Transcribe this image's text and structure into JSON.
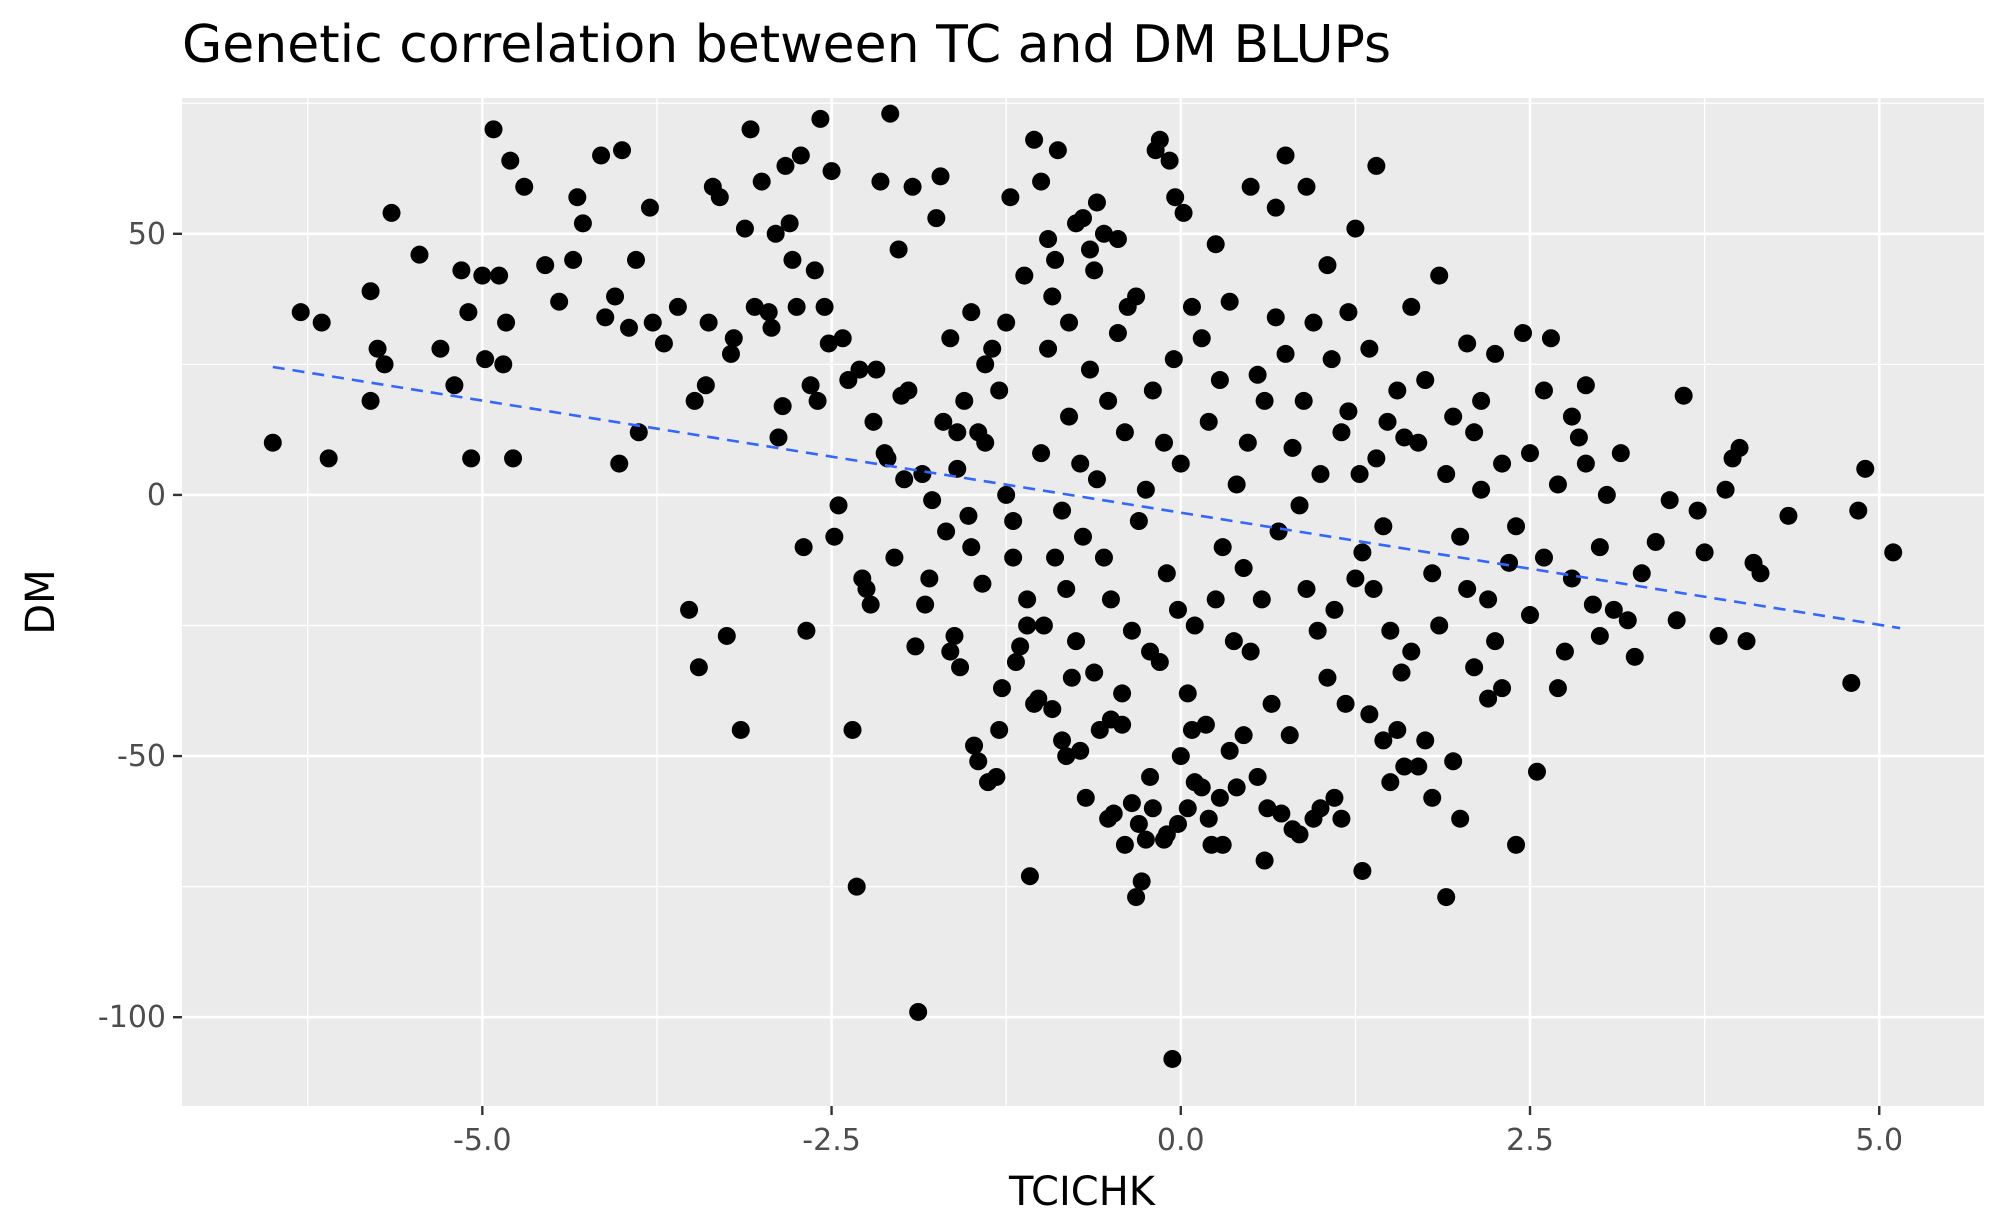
{
  "chart_data": {
    "type": "scatter",
    "title": "Genetic correlation between TC and DM BLUPs",
    "xlabel": "TCICHK",
    "ylabel": "DM",
    "xlim": [
      -7.15,
      5.75
    ],
    "ylim": [
      -117,
      76
    ],
    "x_ticks": [
      -5.0,
      -2.5,
      0.0,
      2.5,
      5.0
    ],
    "x_tick_labels": [
      "-5.0",
      "-2.5",
      "0.0",
      "2.5",
      "5.0"
    ],
    "y_ticks": [
      -100,
      -50,
      0,
      50
    ],
    "y_tick_labels": [
      "-100",
      "-50",
      "0",
      "50"
    ],
    "grid": true,
    "legend": "none",
    "colors": {
      "panel": "#ebebeb",
      "grid": "#ffffff",
      "points": "#000000",
      "trend": "#3366ff"
    },
    "trend_line": {
      "style": "dashed",
      "x": [
        -6.5,
        5.15
      ],
      "y": [
        24.5,
        -25.5
      ]
    },
    "points": [
      [
        -6.5,
        10
      ],
      [
        -6.3,
        35
      ],
      [
        -6.15,
        33
      ],
      [
        -6.1,
        7
      ],
      [
        -5.8,
        39
      ],
      [
        -5.8,
        18
      ],
      [
        -5.75,
        28
      ],
      [
        -5.7,
        25
      ],
      [
        -5.65,
        54
      ],
      [
        -5.45,
        46
      ],
      [
        -5.3,
        28
      ],
      [
        -5.2,
        21
      ],
      [
        -5.15,
        43
      ],
      [
        -5.1,
        35
      ],
      [
        -5.08,
        7
      ],
      [
        -5.0,
        42
      ],
      [
        -4.98,
        26
      ],
      [
        -4.92,
        70
      ],
      [
        -4.88,
        42
      ],
      [
        -4.85,
        25
      ],
      [
        -4.83,
        33
      ],
      [
        -4.8,
        64
      ],
      [
        -4.78,
        7
      ],
      [
        -4.7,
        59
      ],
      [
        -4.55,
        44
      ],
      [
        -4.45,
        37
      ],
      [
        -4.35,
        45
      ],
      [
        -4.32,
        57
      ],
      [
        -4.28,
        52
      ],
      [
        -4.15,
        65
      ],
      [
        -4.12,
        34
      ],
      [
        -4.05,
        38
      ],
      [
        -4.02,
        6
      ],
      [
        -4.0,
        66
      ],
      [
        -3.95,
        32
      ],
      [
        -3.9,
        45
      ],
      [
        -3.88,
        12
      ],
      [
        -3.8,
        55
      ],
      [
        -3.78,
        33
      ],
      [
        -3.7,
        29
      ],
      [
        -3.6,
        36
      ],
      [
        -3.52,
        -22
      ],
      [
        -3.48,
        18
      ],
      [
        -3.45,
        -33
      ],
      [
        -3.4,
        21
      ],
      [
        -3.38,
        33
      ],
      [
        -3.35,
        59
      ],
      [
        -3.3,
        57
      ],
      [
        -3.25,
        -27
      ],
      [
        -3.22,
        27
      ],
      [
        -3.2,
        30
      ],
      [
        -3.15,
        -45
      ],
      [
        -3.12,
        51
      ],
      [
        -3.08,
        70
      ],
      [
        -3.05,
        36
      ],
      [
        -3.0,
        60
      ],
      [
        -2.95,
        35
      ],
      [
        -2.93,
        32
      ],
      [
        -2.9,
        50
      ],
      [
        -2.88,
        11
      ],
      [
        -2.85,
        17
      ],
      [
        -2.83,
        63
      ],
      [
        -2.8,
        52
      ],
      [
        -2.78,
        45
      ],
      [
        -2.75,
        36
      ],
      [
        -2.72,
        65
      ],
      [
        -2.7,
        -10
      ],
      [
        -2.68,
        -26
      ],
      [
        -2.65,
        21
      ],
      [
        -2.62,
        43
      ],
      [
        -2.6,
        18
      ],
      [
        -2.58,
        72
      ],
      [
        -2.55,
        36
      ],
      [
        -2.52,
        29
      ],
      [
        -2.5,
        62
      ],
      [
        -2.48,
        -8
      ],
      [
        -2.45,
        -2
      ],
      [
        -2.42,
        30
      ],
      [
        -2.38,
        22
      ],
      [
        -2.35,
        -45
      ],
      [
        -2.32,
        -75
      ],
      [
        -2.3,
        24
      ],
      [
        -2.28,
        -16
      ],
      [
        -2.25,
        -18
      ],
      [
        -2.22,
        -21
      ],
      [
        -2.2,
        14
      ],
      [
        -2.18,
        24
      ],
      [
        -2.15,
        60
      ],
      [
        -2.12,
        8
      ],
      [
        -2.1,
        7
      ],
      [
        -2.08,
        73
      ],
      [
        -2.05,
        -12
      ],
      [
        -2.02,
        47
      ],
      [
        -2.0,
        19
      ],
      [
        -1.98,
        3
      ],
      [
        -1.95,
        20
      ],
      [
        -1.92,
        59
      ],
      [
        -1.9,
        -29
      ],
      [
        -1.88,
        -99
      ],
      [
        -1.85,
        4
      ],
      [
        -1.83,
        -21
      ],
      [
        -1.8,
        -16
      ],
      [
        -1.78,
        -1
      ],
      [
        -1.75,
        53
      ],
      [
        -1.72,
        61
      ],
      [
        -1.7,
        14
      ],
      [
        -1.68,
        -7
      ],
      [
        -1.65,
        30
      ],
      [
        -1.62,
        -27
      ],
      [
        -1.6,
        12
      ],
      [
        -1.58,
        -33
      ],
      [
        -1.55,
        18
      ],
      [
        -1.52,
        -4
      ],
      [
        -1.5,
        35
      ],
      [
        -1.48,
        -48
      ],
      [
        -1.45,
        -51
      ],
      [
        -1.42,
        -17
      ],
      [
        -1.4,
        25
      ],
      [
        -1.38,
        -55
      ],
      [
        -1.35,
        28
      ],
      [
        -1.32,
        -54
      ],
      [
        -1.3,
        -45
      ],
      [
        -1.28,
        -37
      ],
      [
        -1.25,
        33
      ],
      [
        -1.22,
        57
      ],
      [
        -1.2,
        -12
      ],
      [
        -1.18,
        -32
      ],
      [
        -1.15,
        -29
      ],
      [
        -1.12,
        42
      ],
      [
        -1.1,
        -20
      ],
      [
        -1.08,
        -73
      ],
      [
        -1.05,
        68
      ],
      [
        -1.02,
        -39
      ],
      [
        -1.0,
        60
      ],
      [
        -0.98,
        -25
      ],
      [
        -0.95,
        49
      ],
      [
        -0.92,
        -41
      ],
      [
        -0.9,
        45
      ],
      [
        -0.88,
        66
      ],
      [
        -0.85,
        -47
      ],
      [
        -0.82,
        -50
      ],
      [
        -0.8,
        33
      ],
      [
        -0.78,
        -35
      ],
      [
        -0.75,
        52
      ],
      [
        -0.72,
        -49
      ],
      [
        -0.7,
        53
      ],
      [
        -0.68,
        -58
      ],
      [
        -0.65,
        47
      ],
      [
        -0.62,
        43
      ],
      [
        -0.6,
        56
      ],
      [
        -0.58,
        -45
      ],
      [
        -0.55,
        50
      ],
      [
        -0.52,
        -62
      ],
      [
        -0.5,
        -43
      ],
      [
        -0.48,
        -61
      ],
      [
        -0.45,
        49
      ],
      [
        -0.42,
        -38
      ],
      [
        -0.4,
        -67
      ],
      [
        -0.38,
        36
      ],
      [
        -0.35,
        -59
      ],
      [
        -0.32,
        -77
      ],
      [
        -0.3,
        -63
      ],
      [
        -0.28,
        -74
      ],
      [
        -0.25,
        -66
      ],
      [
        -0.22,
        -54
      ],
      [
        -0.2,
        -60
      ],
      [
        -0.18,
        66
      ],
      [
        -0.15,
        68
      ],
      [
        -0.12,
        -66
      ],
      [
        -0.1,
        -65
      ],
      [
        -0.08,
        64
      ],
      [
        -0.06,
        -108
      ],
      [
        -0.04,
        57
      ],
      [
        -0.02,
        -63
      ],
      [
        0.0,
        -50
      ],
      [
        0.02,
        54
      ],
      [
        0.05,
        -60
      ],
      [
        0.08,
        -45
      ],
      [
        0.1,
        -55
      ],
      [
        0.15,
        -56
      ],
      [
        0.2,
        -62
      ],
      [
        0.22,
        -67
      ],
      [
        0.25,
        48
      ],
      [
        0.28,
        -58
      ],
      [
        0.3,
        -67
      ],
      [
        0.35,
        -49
      ],
      [
        0.4,
        -56
      ],
      [
        0.45,
        -46
      ],
      [
        0.5,
        59
      ],
      [
        0.55,
        -54
      ],
      [
        0.6,
        -70
      ],
      [
        0.62,
        -60
      ],
      [
        0.68,
        55
      ],
      [
        0.72,
        -61
      ],
      [
        0.75,
        65
      ],
      [
        0.8,
        -64
      ],
      [
        0.85,
        -65
      ],
      [
        0.9,
        59
      ],
      [
        0.95,
        -62
      ],
      [
        1.0,
        -60
      ],
      [
        1.05,
        44
      ],
      [
        1.1,
        -58
      ],
      [
        1.15,
        -62
      ],
      [
        1.2,
        35
      ],
      [
        1.25,
        51
      ],
      [
        1.3,
        -72
      ],
      [
        1.35,
        -42
      ],
      [
        1.4,
        63
      ],
      [
        1.45,
        -47
      ],
      [
        1.5,
        -55
      ],
      [
        1.55,
        -45
      ],
      [
        1.6,
        -52
      ],
      [
        1.65,
        36
      ],
      [
        1.7,
        -52
      ],
      [
        1.75,
        -47
      ],
      [
        1.8,
        -58
      ],
      [
        1.85,
        42
      ],
      [
        1.9,
        -77
      ],
      [
        1.95,
        -51
      ],
      [
        2.0,
        -62
      ],
      [
        2.05,
        29
      ],
      [
        2.1,
        -33
      ],
      [
        2.15,
        18
      ],
      [
        2.2,
        -39
      ],
      [
        2.25,
        27
      ],
      [
        2.3,
        -37
      ],
      [
        2.35,
        -13
      ],
      [
        2.4,
        -67
      ],
      [
        2.45,
        31
      ],
      [
        2.5,
        -23
      ],
      [
        2.55,
        -53
      ],
      [
        2.6,
        20
      ],
      [
        2.65,
        30
      ],
      [
        2.7,
        -37
      ],
      [
        2.75,
        -30
      ],
      [
        2.8,
        15
      ],
      [
        2.85,
        11
      ],
      [
        2.9,
        21
      ],
      [
        2.95,
        -21
      ],
      [
        3.0,
        -27
      ],
      [
        3.05,
        0
      ],
      [
        3.1,
        -22
      ],
      [
        3.15,
        8
      ],
      [
        3.2,
        -24
      ],
      [
        3.25,
        -31
      ],
      [
        3.3,
        -15
      ],
      [
        3.4,
        -9
      ],
      [
        3.5,
        -1
      ],
      [
        3.55,
        -24
      ],
      [
        3.6,
        19
      ],
      [
        3.7,
        -3
      ],
      [
        3.75,
        -11
      ],
      [
        3.85,
        -27
      ],
      [
        3.9,
        1
      ],
      [
        3.95,
        7
      ],
      [
        4.0,
        9
      ],
      [
        4.05,
        -28
      ],
      [
        4.1,
        -13
      ],
      [
        4.15,
        -15
      ],
      [
        4.35,
        -4
      ],
      [
        4.8,
        -36
      ],
      [
        4.85,
        -3
      ],
      [
        4.9,
        5
      ],
      [
        5.1,
        -11
      ],
      [
        -1.6,
        5
      ],
      [
        -1.4,
        10
      ],
      [
        -1.2,
        -5
      ],
      [
        -1.0,
        8
      ],
      [
        -0.9,
        -12
      ],
      [
        -0.8,
        15
      ],
      [
        -0.7,
        -8
      ],
      [
        -0.6,
        3
      ],
      [
        -0.5,
        -20
      ],
      [
        -0.4,
        12
      ],
      [
        -0.3,
        -5
      ],
      [
        -0.2,
        20
      ],
      [
        -0.1,
        -15
      ],
      [
        0.0,
        6
      ],
      [
        0.1,
        -25
      ],
      [
        0.2,
        14
      ],
      [
        0.3,
        -10
      ],
      [
        0.4,
        2
      ],
      [
        0.5,
        -30
      ],
      [
        0.6,
        18
      ],
      [
        0.7,
        -7
      ],
      [
        0.8,
        9
      ],
      [
        0.9,
        -18
      ],
      [
        1.0,
        4
      ],
      [
        1.1,
        -22
      ],
      [
        1.2,
        16
      ],
      [
        1.3,
        -11
      ],
      [
        1.4,
        7
      ],
      [
        1.5,
        -26
      ],
      [
        1.6,
        11
      ],
      [
        -1.5,
        -10
      ],
      [
        -1.3,
        20
      ],
      [
        -1.1,
        -25
      ],
      [
        -0.95,
        28
      ],
      [
        -0.85,
        -3
      ],
      [
        -0.75,
        -28
      ],
      [
        -0.65,
        24
      ],
      [
        -0.55,
        -12
      ],
      [
        -0.45,
        31
      ],
      [
        -0.35,
        -26
      ],
      [
        -0.25,
        1
      ],
      [
        -0.15,
        -32
      ],
      [
        -0.05,
        26
      ],
      [
        0.05,
        -38
      ],
      [
        0.15,
        30
      ],
      [
        0.25,
        -20
      ],
      [
        0.35,
        37
      ],
      [
        0.45,
        -14
      ],
      [
        0.55,
        23
      ],
      [
        0.65,
        -40
      ],
      [
        0.75,
        27
      ],
      [
        0.85,
        -2
      ],
      [
        0.95,
        33
      ],
      [
        1.05,
        -35
      ],
      [
        1.15,
        12
      ],
      [
        1.25,
        -16
      ],
      [
        1.35,
        28
      ],
      [
        1.45,
        -6
      ],
      [
        1.55,
        20
      ],
      [
        1.65,
        -30
      ],
      [
        -1.65,
        -30
      ],
      [
        -1.45,
        12
      ],
      [
        -1.25,
        0
      ],
      [
        -1.05,
        -40
      ],
      [
        -0.92,
        38
      ],
      [
        -0.82,
        -18
      ],
      [
        -0.72,
        6
      ],
      [
        -0.62,
        -34
      ],
      [
        -0.52,
        18
      ],
      [
        -0.42,
        -44
      ],
      [
        -0.32,
        38
      ],
      [
        -0.22,
        -30
      ],
      [
        -0.12,
        10
      ],
      [
        -0.02,
        -22
      ],
      [
        0.08,
        36
      ],
      [
        0.18,
        -44
      ],
      [
        0.28,
        22
      ],
      [
        0.38,
        -28
      ],
      [
        0.48,
        10
      ],
      [
        0.58,
        -20
      ],
      [
        0.68,
        34
      ],
      [
        0.78,
        -46
      ],
      [
        0.88,
        18
      ],
      [
        0.98,
        -26
      ],
      [
        1.08,
        26
      ],
      [
        1.18,
        -40
      ],
      [
        1.28,
        4
      ],
      [
        1.38,
        -18
      ],
      [
        1.48,
        14
      ],
      [
        1.58,
        -34
      ],
      [
        1.7,
        10
      ],
      [
        1.8,
        -15
      ],
      [
        1.9,
        4
      ],
      [
        2.0,
        -8
      ],
      [
        2.1,
        12
      ],
      [
        2.2,
        -20
      ],
      [
        2.3,
        6
      ],
      [
        2.4,
        -6
      ],
      [
        2.5,
        8
      ],
      [
        2.6,
        -12
      ],
      [
        2.7,
        2
      ],
      [
        2.8,
        -16
      ],
      [
        2.9,
        6
      ],
      [
        3.0,
        -10
      ],
      [
        1.75,
        22
      ],
      [
        1.85,
        -25
      ],
      [
        1.95,
        15
      ],
      [
        2.05,
        -18
      ],
      [
        2.15,
        1
      ],
      [
        2.25,
        -28
      ]
    ]
  }
}
